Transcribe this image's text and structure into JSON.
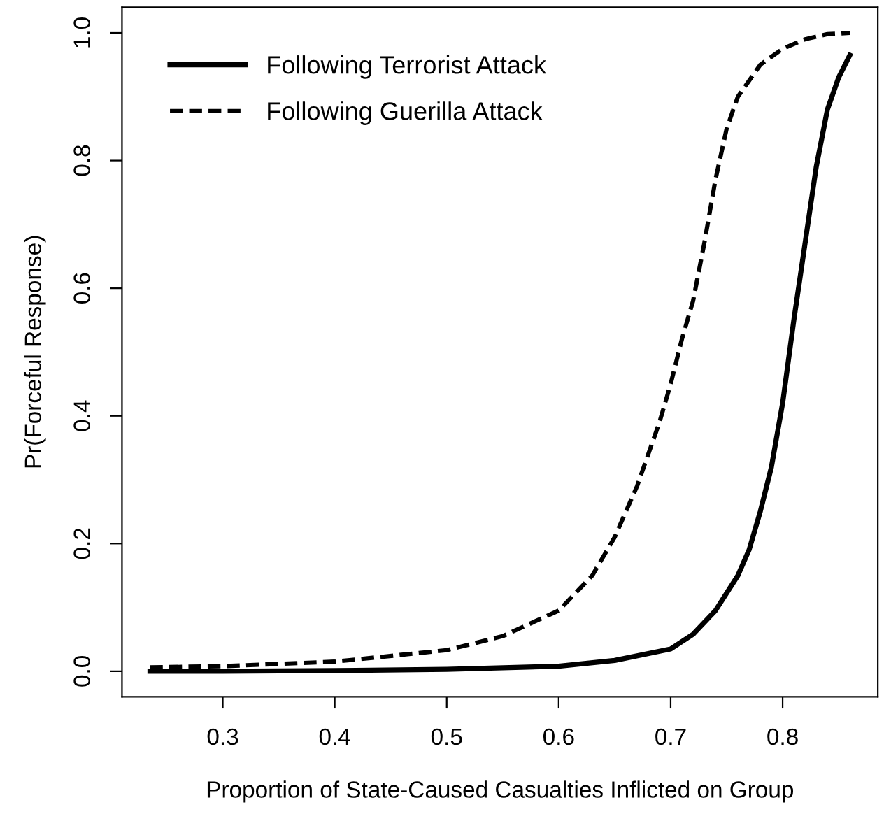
{
  "chart_data": {
    "type": "line",
    "xlabel": "Proportion of State-Caused Casualties Inflicted on Group",
    "ylabel": "Pr(Forceful Response)",
    "xlim": [
      0.21,
      0.885
    ],
    "xticks": [
      0.3,
      0.4,
      0.5,
      0.6,
      0.7,
      0.8
    ],
    "ylim": [
      -0.04,
      1.04
    ],
    "yticks": [
      {
        "value": 0,
        "label": "0.0"
      },
      0.2,
      0.4,
      0.6,
      0.8,
      {
        "value": 1,
        "label": "1.0"
      }
    ],
    "grid": false,
    "legend": "top left",
    "marker": "none",
    "series": [
      {
        "name": "Following Terrorist Attack",
        "color": "#000000",
        "line_style": "solid",
        "x": [
          0.235,
          0.3,
          0.4,
          0.5,
          0.6,
          0.65,
          0.7,
          0.72,
          0.74,
          0.76,
          0.77,
          0.78,
          0.79,
          0.8,
          0.81,
          0.82,
          0.83,
          0.84,
          0.85,
          0.86
        ],
        "values": [
          0.0,
          0.0,
          0.001,
          0.003,
          0.008,
          0.017,
          0.035,
          0.058,
          0.095,
          0.15,
          0.19,
          0.25,
          0.32,
          0.42,
          0.55,
          0.67,
          0.79,
          0.88,
          0.93,
          0.965
        ]
      },
      {
        "name": "Following Guerilla Attack",
        "color": "#000000",
        "line_style": "dashed",
        "x": [
          0.235,
          0.3,
          0.4,
          0.5,
          0.55,
          0.6,
          0.63,
          0.65,
          0.67,
          0.69,
          0.7,
          0.71,
          0.72,
          0.73,
          0.74,
          0.75,
          0.76,
          0.78,
          0.8,
          0.82,
          0.84,
          0.86
        ],
        "values": [
          0.006,
          0.008,
          0.015,
          0.033,
          0.055,
          0.095,
          0.15,
          0.21,
          0.29,
          0.39,
          0.45,
          0.52,
          0.58,
          0.67,
          0.77,
          0.85,
          0.9,
          0.95,
          0.975,
          0.99,
          0.998,
          1.0
        ]
      }
    ]
  }
}
